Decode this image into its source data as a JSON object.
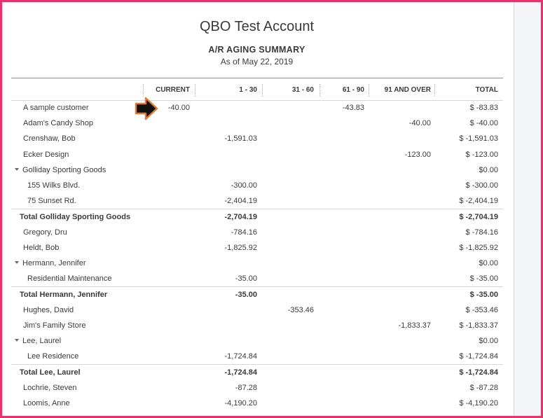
{
  "company": "QBO Test Account",
  "report": {
    "title": "A/R AGING SUMMARY",
    "date": "As of May 22, 2019"
  },
  "columns": [
    "CURRENT",
    "1 - 30",
    "31 - 60",
    "61 - 90",
    "91 AND OVER",
    "TOTAL"
  ],
  "rows": [
    {
      "name": "A sample customer",
      "level": 0,
      "type": "line",
      "current": "-40.00",
      "d1_30": "",
      "d31_60": "",
      "d61_90": "-43.83",
      "d91": "",
      "total": "$ -83.83"
    },
    {
      "name": "Adam's Candy Shop",
      "level": 0,
      "type": "line",
      "current": "",
      "d1_30": "",
      "d31_60": "",
      "d61_90": "",
      "d91": "-40.00",
      "total": "$ -40.00"
    },
    {
      "name": "Crenshaw, Bob",
      "level": 0,
      "type": "line",
      "current": "",
      "d1_30": "-1,591.03",
      "d31_60": "",
      "d61_90": "",
      "d91": "",
      "total": "$ -1,591.03"
    },
    {
      "name": "Ecker Design",
      "level": 0,
      "type": "line",
      "current": "",
      "d1_30": "",
      "d31_60": "",
      "d61_90": "",
      "d91": "-123.00",
      "total": "$ -123.00"
    },
    {
      "name": "Golliday Sporting Goods",
      "level": 0,
      "type": "group",
      "current": "",
      "d1_30": "",
      "d31_60": "",
      "d61_90": "",
      "d91": "",
      "total": "$0.00"
    },
    {
      "name": "155 Wilks Blvd.",
      "level": 1,
      "type": "line",
      "current": "",
      "d1_30": "-300.00",
      "d31_60": "",
      "d61_90": "",
      "d91": "",
      "total": "$ -300.00"
    },
    {
      "name": "75 Sunset Rd.",
      "level": 1,
      "type": "line",
      "current": "",
      "d1_30": "-2,404.19",
      "d31_60": "",
      "d61_90": "",
      "d91": "",
      "total": "$ -2,404.19"
    },
    {
      "name": "Total Golliday Sporting Goods",
      "level": 0,
      "type": "total",
      "current": "",
      "d1_30": "-2,704.19",
      "d31_60": "",
      "d61_90": "",
      "d91": "",
      "total": "$ -2,704.19"
    },
    {
      "name": "Gregory, Dru",
      "level": 0,
      "type": "line",
      "current": "",
      "d1_30": "-784.16",
      "d31_60": "",
      "d61_90": "",
      "d91": "",
      "total": "$ -784.16"
    },
    {
      "name": "Heldt, Bob",
      "level": 0,
      "type": "line",
      "current": "",
      "d1_30": "-1,825.92",
      "d31_60": "",
      "d61_90": "",
      "d91": "",
      "total": "$ -1,825.92"
    },
    {
      "name": "Hermann, Jennifer",
      "level": 0,
      "type": "group",
      "current": "",
      "d1_30": "",
      "d31_60": "",
      "d61_90": "",
      "d91": "",
      "total": "$0.00"
    },
    {
      "name": "Residential Maintenance",
      "level": 1,
      "type": "line",
      "current": "",
      "d1_30": "-35.00",
      "d31_60": "",
      "d61_90": "",
      "d91": "",
      "total": "$ -35.00"
    },
    {
      "name": "Total Hermann, Jennifer",
      "level": 0,
      "type": "total",
      "current": "",
      "d1_30": "-35.00",
      "d31_60": "",
      "d61_90": "",
      "d91": "",
      "total": "$ -35.00"
    },
    {
      "name": "Hughes, David",
      "level": 0,
      "type": "line",
      "current": "",
      "d1_30": "",
      "d31_60": "-353.46",
      "d61_90": "",
      "d91": "",
      "total": "$ -353.46"
    },
    {
      "name": "Jim's Family Store",
      "level": 0,
      "type": "line",
      "current": "",
      "d1_30": "",
      "d31_60": "",
      "d61_90": "",
      "d91": "-1,833.37",
      "total": "$ -1,833.37"
    },
    {
      "name": "Lee, Laurel",
      "level": 0,
      "type": "group",
      "current": "",
      "d1_30": "",
      "d31_60": "",
      "d61_90": "",
      "d91": "",
      "total": "$0.00"
    },
    {
      "name": "Lee Residence",
      "level": 1,
      "type": "line",
      "current": "",
      "d1_30": "-1,724.84",
      "d31_60": "",
      "d61_90": "",
      "d91": "",
      "total": "$ -1,724.84"
    },
    {
      "name": "Total Lee, Laurel",
      "level": 0,
      "type": "total",
      "current": "",
      "d1_30": "-1,724.84",
      "d31_60": "",
      "d61_90": "",
      "d91": "",
      "total": "$ -1,724.84"
    },
    {
      "name": "Lochrie, Steven",
      "level": 0,
      "type": "line",
      "current": "",
      "d1_30": "-87.28",
      "d31_60": "",
      "d61_90": "",
      "d91": "",
      "total": "$ -87.28"
    },
    {
      "name": "Loomis, Anne",
      "level": 0,
      "type": "line",
      "current": "",
      "d1_30": "-4,190.20",
      "d31_60": "",
      "d61_90": "",
      "d91": "",
      "total": "$ -4,190.20"
    }
  ],
  "annotation": {
    "icon": "arrow-right-icon",
    "fill": "#111111",
    "stroke": "#e8782d"
  },
  "colors": {
    "frame": "#e8336a",
    "text": "#393a3d"
  }
}
